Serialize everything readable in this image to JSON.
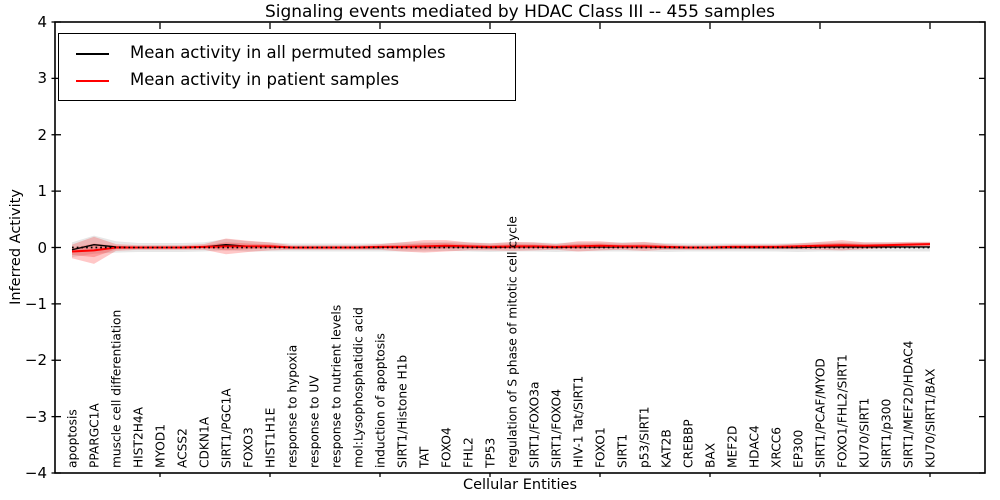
{
  "figure": {
    "title": "Signaling events mediated by HDAC Class III -- 455 samples",
    "xlabel": "Cellular Entities",
    "ylabel": "Inferred Activity"
  },
  "legend": {
    "entries": [
      {
        "label": "Mean activity in all permuted samples",
        "color": "#000000"
      },
      {
        "label": "Mean activity in patient samples",
        "color": "#ff0000"
      }
    ]
  },
  "axes": {
    "yticks": [
      "4",
      "3",
      "2",
      "1",
      "0",
      "−1",
      "−2",
      "−3",
      "−4"
    ],
    "ytick_values": [
      4,
      3,
      2,
      1,
      0,
      -1,
      -2,
      -3,
      -4
    ]
  },
  "chart_data": {
    "type": "line",
    "title": "Signaling events mediated by HDAC Class III -- 455 samples",
    "xlabel": "Cellular Entities",
    "ylabel": "Inferred Activity",
    "ylim": [
      -4,
      4
    ],
    "grid": false,
    "legend_position": "upper left",
    "xticks": [
      5,
      10,
      15,
      20,
      25,
      30,
      35,
      40
    ],
    "categories": [
      "apoptosis",
      "PPARGC1A",
      "muscle cell differentiation",
      "HIST2H4A",
      "MYOD1",
      "ACSS2",
      "CDKN1A",
      "SIRT1/PGC1A",
      "FOXO3",
      "HIST1H1E",
      "response to hypoxia",
      "response to UV",
      "response to nutrient levels",
      "mol:Lysophosphatidic acid",
      "induction of apoptosis",
      "SIRT1/Histone H1b",
      "TAT",
      "FOXO4",
      "FHL2",
      "TP53",
      "regulation of S phase of mitotic cell cycle",
      "SIRT1/FOXO3a",
      "SIRT1/FOXO4",
      "HIV-1 Tat/SIRT1",
      "FOXO1",
      "SIRT1",
      "p53/SIRT1",
      "KAT2B",
      "CREBBP",
      "BAX",
      "MEF2D",
      "HDAC4",
      "XRCC6",
      "EP300",
      "SIRT1/PCAF/MYOD",
      "FOXO1/FHL2/SIRT1",
      "KU70/SIRT1",
      "SIRT1/p300",
      "SIRT1/MEF2D/HDAC4",
      "KU70/SIRT1/BAX"
    ],
    "series": [
      {
        "key": "permuted-mean-line",
        "name": "Mean activity in all permuted samples",
        "color": "#000000",
        "style": "solid",
        "values": [
          -0.04,
          0.05,
          0.01,
          0.0,
          0.0,
          0.0,
          0.01,
          0.05,
          0.02,
          0.01,
          0.0,
          0.0,
          0.0,
          0.0,
          0.0,
          0.01,
          0.01,
          0.02,
          0.01,
          0.0,
          0.01,
          0.01,
          0.0,
          0.01,
          0.01,
          0.01,
          0.01,
          0.0,
          0.0,
          0.0,
          0.0,
          0.0,
          0.0,
          0.0,
          0.01,
          0.01,
          0.01,
          0.01,
          0.01,
          0.01
        ]
      },
      {
        "key": "patient-mean-line",
        "name": "Mean activity in patient samples",
        "color": "#ff0000",
        "style": "solid",
        "values": [
          -0.07,
          -0.05,
          0.0,
          0.0,
          0.0,
          0.0,
          0.01,
          0.02,
          0.02,
          0.02,
          0.0,
          0.0,
          0.0,
          0.0,
          0.01,
          0.01,
          0.02,
          0.03,
          0.02,
          0.01,
          0.02,
          0.02,
          0.01,
          0.02,
          0.03,
          0.02,
          0.02,
          0.01,
          0.0,
          0.0,
          0.01,
          0.01,
          0.01,
          0.02,
          0.03,
          0.04,
          0.03,
          0.04,
          0.05,
          0.06
        ]
      }
    ],
    "bands": [
      {
        "key": "permuted-band",
        "name": "spread of permuted sample activity",
        "color": "#555555",
        "opacity": 0.14,
        "center_series": 0,
        "halfwidths": [
          0.13,
          0.16,
          0.1,
          0.08,
          0.08,
          0.08,
          0.08,
          0.1,
          0.09,
          0.08,
          0.07,
          0.07,
          0.07,
          0.07,
          0.07,
          0.08,
          0.08,
          0.08,
          0.08,
          0.08,
          0.08,
          0.08,
          0.08,
          0.08,
          0.08,
          0.08,
          0.08,
          0.08,
          0.07,
          0.07,
          0.07,
          0.07,
          0.07,
          0.08,
          0.08,
          0.08,
          0.08,
          0.08,
          0.08,
          0.08
        ]
      },
      {
        "key": "patient-band",
        "name": "spread of patient sample activity",
        "color": "#ff0000",
        "opacity": 0.22,
        "center_series": 1,
        "inner_scale": 0.5,
        "halfwidths": [
          0.12,
          0.24,
          0.06,
          0.04,
          0.04,
          0.04,
          0.05,
          0.14,
          0.1,
          0.07,
          0.04,
          0.04,
          0.04,
          0.04,
          0.05,
          0.08,
          0.11,
          0.1,
          0.07,
          0.06,
          0.08,
          0.07,
          0.05,
          0.09,
          0.08,
          0.06,
          0.08,
          0.05,
          0.04,
          0.04,
          0.04,
          0.04,
          0.04,
          0.05,
          0.07,
          0.09,
          0.06,
          0.05,
          0.05,
          0.04
        ]
      }
    ],
    "reference_line": {
      "y": 0,
      "style": "dotted",
      "color": "#000000"
    }
  }
}
